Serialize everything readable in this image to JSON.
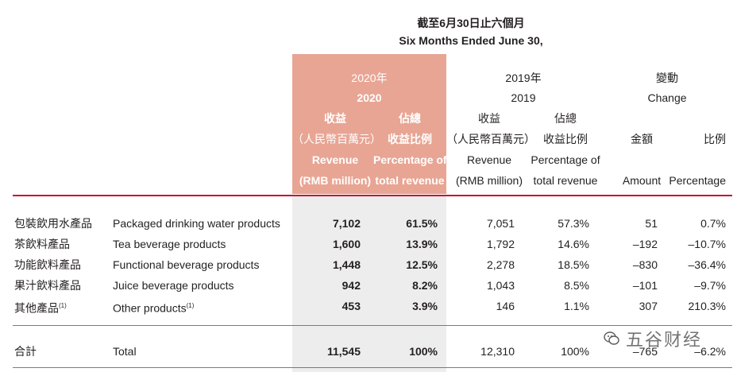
{
  "header": {
    "period_zh": "截至6月30日止六個月",
    "period_en": "Six Months Ended June 30,"
  },
  "col_2020": {
    "year_zh": "2020年",
    "year_en": "2020",
    "rev_zh1": "收益",
    "rev_zh2": "（人民幣百萬元）",
    "rev_en1": "Revenue",
    "rev_en2": "(RMB million)",
    "pct_zh1": "佔總",
    "pct_zh2": "收益比例",
    "pct_en1": "Percentage of",
    "pct_en2": "total revenue"
  },
  "col_2019": {
    "year_zh": "2019年",
    "year_en": "2019",
    "rev_zh1": "收益",
    "rev_zh2": "（人民幣百萬元）",
    "rev_en1": "Revenue",
    "rev_en2": "(RMB million)",
    "pct_zh1": "佔總",
    "pct_zh2": "收益比例",
    "pct_en1": "Percentage of",
    "pct_en2": "total revenue"
  },
  "col_change": {
    "title_zh": "變動",
    "title_en": "Change",
    "amount_zh": "金額",
    "amount_en": "Amount",
    "pct_zh": "比例",
    "pct_en": "Percentage"
  },
  "rows": [
    {
      "zh": "包裝飲用水產品",
      "en": "Packaged drinking water products",
      "rev2020": "7,102",
      "pct2020": "61.5%",
      "rev2019": "7,051",
      "pct2019": "57.3%",
      "amount": "51",
      "pct": "0.7%"
    },
    {
      "zh": "茶飲料產品",
      "en": "Tea beverage products",
      "rev2020": "1,600",
      "pct2020": "13.9%",
      "rev2019": "1,792",
      "pct2019": "14.6%",
      "amount": "–192",
      "pct": "–10.7%"
    },
    {
      "zh": "功能飲料產品",
      "en": "Functional beverage products",
      "rev2020": "1,448",
      "pct2020": "12.5%",
      "rev2019": "2,278",
      "pct2019": "18.5%",
      "amount": "–830",
      "pct": "–36.4%"
    },
    {
      "zh": "果汁飲料產品",
      "en": "Juice beverage products",
      "rev2020": "942",
      "pct2020": "8.2%",
      "rev2019": "1,043",
      "pct2019": "8.5%",
      "amount": "–101",
      "pct": "–9.7%"
    },
    {
      "zh": "其他產品",
      "zh_sup": "(1)",
      "en": "Other products",
      "en_sup": "(1)",
      "rev2020": "453",
      "pct2020": "3.9%",
      "rev2019": "146",
      "pct2019": "1.1%",
      "amount": "307",
      "pct": "210.3%"
    }
  ],
  "total": {
    "zh": "合計",
    "en": "Total",
    "rev2020": "11,545",
    "pct2020": "100%",
    "rev2019": "12,310",
    "pct2019": "100%",
    "amount": "–765",
    "pct": "–6.2%"
  },
  "watermark": {
    "text": "五谷财经"
  },
  "colors": {
    "highlight_header": "#e8a594",
    "highlight_body": "#ededed",
    "rule_red": "#c8102e"
  }
}
